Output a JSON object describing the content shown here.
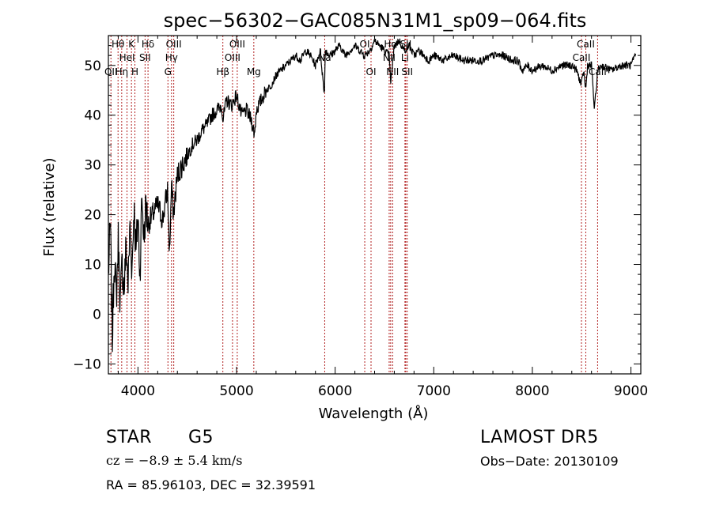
{
  "chart_data": {
    "type": "line",
    "title": "spec−56302−GAC085N31M1_sp09−064.fits",
    "xlabel": "Wavelength (Å)",
    "ylabel": "Flux (relative)",
    "xlim": [
      3700,
      9100
    ],
    "ylim": [
      -12,
      56
    ],
    "x_ticks": [
      4000,
      5000,
      6000,
      7000,
      8000,
      9000
    ],
    "y_ticks": [
      -10,
      0,
      10,
      20,
      30,
      40,
      50
    ],
    "series": [
      {
        "x": [
          3700,
          3720,
          3740,
          3760,
          3780,
          3800,
          3820,
          3840,
          3860,
          3880,
          3900,
          3920,
          3940,
          3960,
          3980,
          4000,
          4020,
          4040,
          4060,
          4080,
          4100,
          4150,
          4200,
          4250,
          4300,
          4320,
          4340,
          4360,
          4400,
          4450,
          4500,
          4550,
          4600,
          4650,
          4700,
          4750,
          4800,
          4850,
          4861,
          4900,
          4950,
          5000,
          5050,
          5100,
          5150,
          5183,
          5200,
          5250,
          5300,
          5350,
          5400,
          5450,
          5500,
          5550,
          5600,
          5650,
          5700,
          5750,
          5800,
          5850,
          5890,
          5900,
          5950,
          6000,
          6050,
          6100,
          6150,
          6200,
          6250,
          6300,
          6350,
          6400,
          6450,
          6500,
          6550,
          6563,
          6600,
          6650,
          6700,
          6750,
          6800,
          6850,
          6900,
          6950,
          7000,
          7100,
          7200,
          7300,
          7400,
          7500,
          7600,
          7700,
          7800,
          7850,
          7900,
          7950,
          8000,
          8100,
          8200,
          8300,
          8400,
          8450,
          8498,
          8520,
          8542,
          8560,
          8600,
          8630,
          8662,
          8700,
          8800,
          8900,
          9000,
          9050
        ],
        "y": [
          8,
          18,
          -5,
          12,
          3,
          15,
          2,
          10,
          5,
          14,
          6,
          18,
          9,
          22,
          12,
          20,
          8,
          24,
          15,
          22,
          18,
          20,
          22,
          19,
          25,
          12,
          26,
          20,
          28,
          30,
          32,
          34,
          35,
          37,
          38,
          40,
          41,
          42,
          39,
          43,
          42,
          44,
          40,
          41,
          39,
          36,
          41,
          43,
          45,
          46,
          48,
          49,
          50,
          51,
          52,
          51,
          53,
          52,
          50,
          53,
          44,
          53,
          52,
          53,
          54,
          52,
          53,
          54,
          53,
          52,
          53,
          55,
          54,
          53,
          52,
          46,
          54,
          55,
          53,
          54,
          52,
          53,
          52,
          51,
          52,
          51,
          52,
          51,
          51,
          51,
          52,
          52,
          51,
          51,
          49,
          50,
          49,
          50,
          49,
          50,
          50,
          49,
          46,
          49,
          45,
          50,
          50,
          41,
          49,
          50,
          49,
          50,
          50,
          52
        ]
      }
    ],
    "lines": [
      {
        "x": 3726,
        "row": 2,
        "label": "OII"
      },
      {
        "x": 3798,
        "row": 0,
        "label": "Hθ"
      },
      {
        "x": 3835,
        "row": 2,
        "label": "Hη"
      },
      {
        "x": 3889,
        "row": 1,
        "label": "HeI"
      },
      {
        "x": 3934,
        "row": 0,
        "label": "K"
      },
      {
        "x": 3969,
        "row": 2,
        "label": "H"
      },
      {
        "x": 4072,
        "row": 1,
        "label": "SII"
      },
      {
        "x": 4102,
        "row": 0,
        "label": "Hδ"
      },
      {
        "x": 4304,
        "row": 2,
        "label": "G"
      },
      {
        "x": 4340,
        "row": 1,
        "label": "Hγ"
      },
      {
        "x": 4363,
        "row": 0,
        "label": "OIII"
      },
      {
        "x": 4861,
        "row": 2,
        "label": "Hβ"
      },
      {
        "x": 4959,
        "row": 1,
        "label": "OIII"
      },
      {
        "x": 5007,
        "row": 0,
        "label": "OIII"
      },
      {
        "x": 5175,
        "row": 2,
        "label": "Mg"
      },
      {
        "x": 5894,
        "row": 1,
        "label": "Na"
      },
      {
        "x": 6300,
        "row": 0,
        "label": "OI"
      },
      {
        "x": 6364,
        "row": 2,
        "label": "OI"
      },
      {
        "x": 6548,
        "row": 1,
        "label": "NII"
      },
      {
        "x": 6563,
        "row": 0,
        "label": "Hα"
      },
      {
        "x": 6583,
        "row": 2,
        "label": "NII"
      },
      {
        "x": 6708,
        "row": 1,
        "label": "Li"
      },
      {
        "x": 6716,
        "row": 0,
        "label": "SII"
      },
      {
        "x": 6731,
        "row": 2,
        "label": "SII"
      },
      {
        "x": 8498,
        "row": 1,
        "label": "CaII"
      },
      {
        "x": 8542,
        "row": 0,
        "label": "CaII"
      },
      {
        "x": 8662,
        "row": 2,
        "label": "CaII"
      }
    ],
    "grid": false,
    "colors": {
      "spectrum": "#000000",
      "line_marker": "#b22222"
    }
  },
  "info": {
    "class": "STAR",
    "subclass": "G5",
    "survey": "LAMOST DR5",
    "cz": "cz = −8.9 ± 5.4 km/s",
    "obs_date": "Obs−Date: 20130109",
    "coords": "RA =  85.96103, DEC =  32.39591"
  }
}
